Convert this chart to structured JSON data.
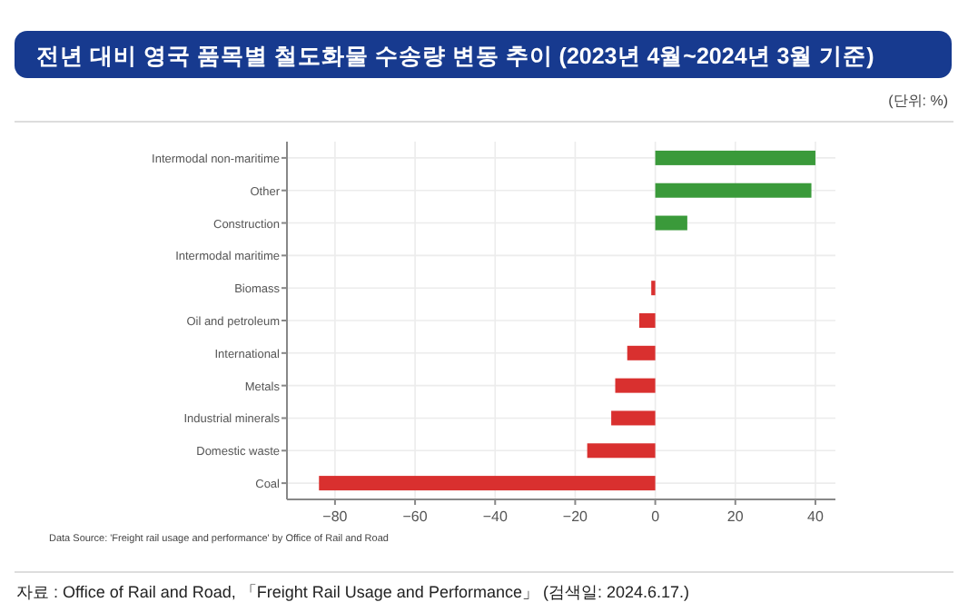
{
  "chart_data": {
    "type": "bar",
    "orientation": "horizontal",
    "title": "전년 대비 영국 품목별 철도화물 수송량 변동 추이 (2023년 4월~2024년 3월 기준)",
    "categories": [
      "Intermodal non-maritime",
      "Other",
      "Construction",
      "Intermodal maritime",
      "Biomass",
      "Oil and petroleum",
      "International",
      "Metals",
      "Industrial minerals",
      "Domestic waste",
      "Coal"
    ],
    "values": [
      40,
      39,
      8,
      0,
      -1,
      -4,
      -7,
      -10,
      -11,
      -17,
      -84
    ],
    "colors": [
      "#3a9a3a",
      "#3a9a3a",
      "#3a9a3a",
      "#3a9a3a",
      "#d9302f",
      "#d9302f",
      "#d9302f",
      "#d9302f",
      "#d9302f",
      "#d9302f",
      "#d9302f"
    ],
    "xlim": [
      -92,
      45
    ],
    "xticks": [
      -80,
      -60,
      -40,
      -20,
      0,
      20,
      40
    ],
    "grid": true,
    "annotations": [
      "(단위: %)",
      "Data Source: 'Freight rail usage and performance' by Office of Rail and Road",
      "자료 : Office of Rail and Road, 「Freight Rail Usage and Performance」 (검색일: 2024.6.17.)"
    ]
  }
}
